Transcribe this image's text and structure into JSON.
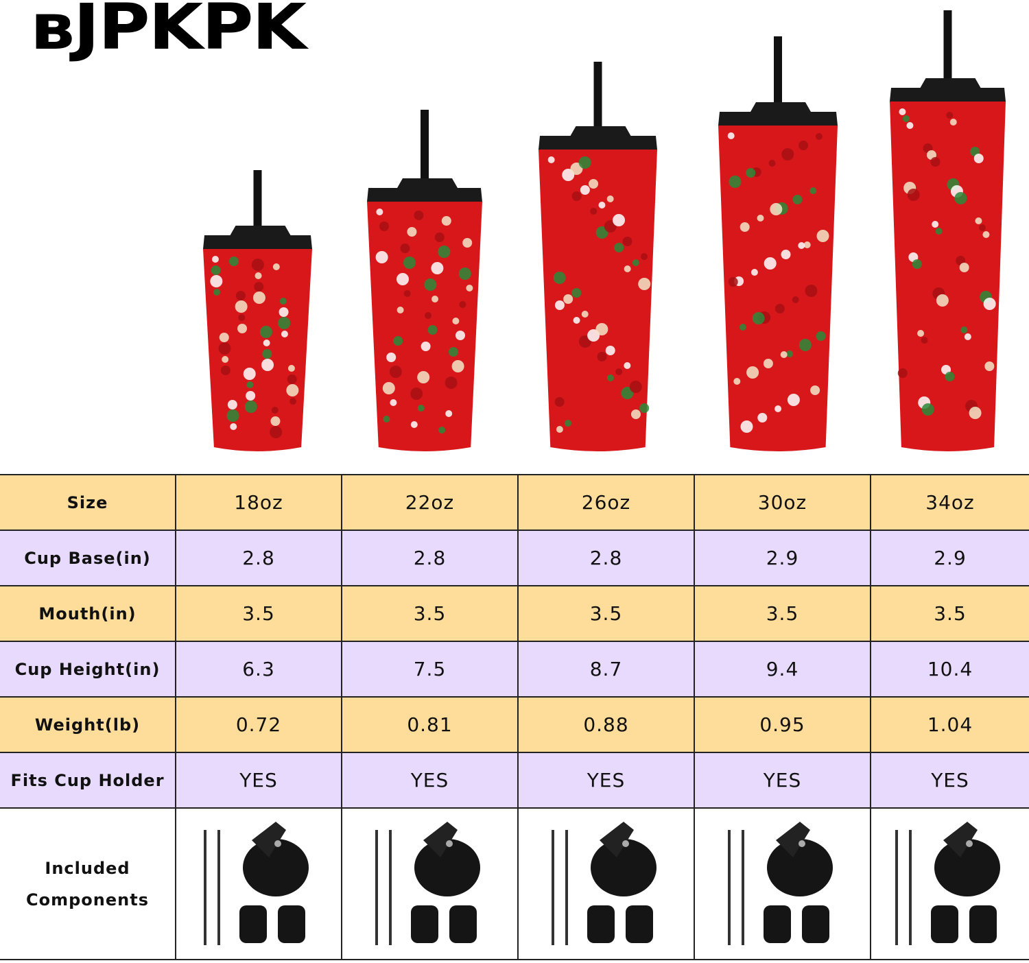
{
  "brand": {
    "logo_text": "BJPKPK"
  },
  "colors": {
    "row_yellow": "#fedd9a",
    "row_purple": "#e8dafc",
    "tumbler_red": "#d8171b",
    "lid_black": "#1a1a1a"
  },
  "product_images": [
    "18oz tumbler",
    "22oz tumbler",
    "26oz tumbler",
    "30oz tumbler",
    "34oz tumbler"
  ],
  "table": {
    "header": {
      "label": "Size",
      "values": [
        "18oz",
        "22oz",
        "26oz",
        "30oz",
        "34oz"
      ]
    },
    "rows": [
      {
        "label": "Cup Base(in)",
        "values": [
          "2.8",
          "2.8",
          "2.8",
          "2.9",
          "2.9"
        ]
      },
      {
        "label": "Mouth(in)",
        "values": [
          "3.5",
          "3.5",
          "3.5",
          "3.5",
          "3.5"
        ]
      },
      {
        "label": "Cup Height(in)",
        "values": [
          "6.3",
          "7.5",
          "8.7",
          "9.4",
          "10.4"
        ]
      },
      {
        "label": "Weight(lb)",
        "values": [
          "0.72",
          "0.81",
          "0.88",
          "0.95",
          "1.04"
        ]
      },
      {
        "label": "Fits Cup Holder",
        "values": [
          "YES",
          "YES",
          "YES",
          "YES",
          "YES"
        ]
      }
    ],
    "components": {
      "label_line1": "Included",
      "label_line2": "Components",
      "items": [
        "2 straws",
        "lid",
        "2 straw plugs"
      ]
    }
  }
}
